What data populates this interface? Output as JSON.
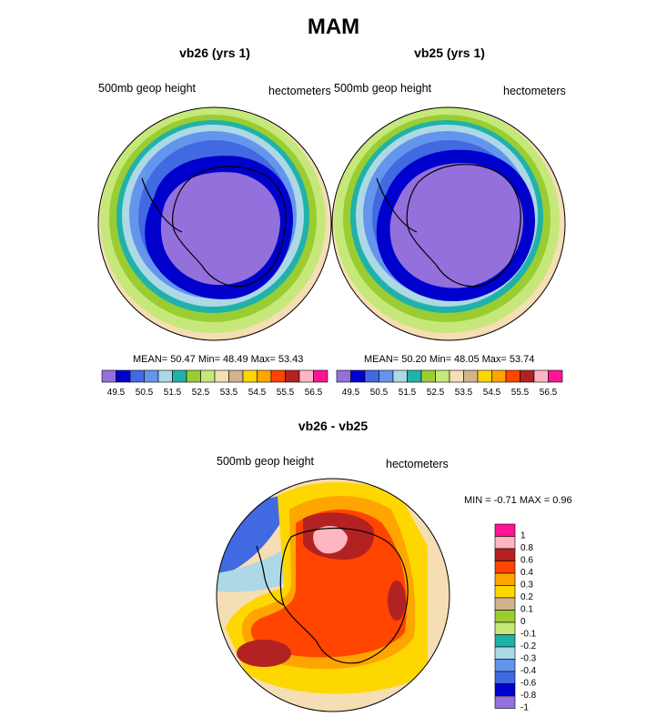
{
  "title": "MAM",
  "colors": {
    "levels": [
      "#9370db",
      "#0000cd",
      "#4169e1",
      "#6495ed",
      "#add8e6",
      "#20b2aa",
      "#9acd32",
      "#9acd32",
      "#f5deb3",
      "#d2b48c",
      "#ffd700",
      "#ffa500",
      "#ff4500",
      "#b22222",
      "#ffb6c1",
      "#ff1493"
    ],
    "ramp_abs": [
      "#9370db",
      "#0000cd",
      "#4169e1",
      "#6495ed",
      "#add8e6",
      "#20b2aa",
      "#9acd32",
      "#c6e87a",
      "#f5deb3",
      "#d2b48c",
      "#ffd700",
      "#ffa500",
      "#ff4500",
      "#b22222",
      "#ffb6c1",
      "#ff1493"
    ],
    "ramp_diff": [
      "#ff1493",
      "#ffb6c1",
      "#b22222",
      "#ff4500",
      "#ffa500",
      "#ffd700",
      "#d2b48c",
      "#9acd32",
      "#c6e87a",
      "#20b2aa",
      "#add8e6",
      "#6495ed",
      "#4169e1",
      "#0000cd",
      "#9370db"
    ]
  },
  "panels": [
    {
      "title": "vb26 (yrs 1)",
      "left_label": "500mb geop height",
      "right_label": "hectometers",
      "stats": "MEAN=  50.47  Min=  48.49  Max=  53.43"
    },
    {
      "title": "vb25 (yrs 1)",
      "left_label": "500mb geop height",
      "right_label": "hectometers",
      "stats": "MEAN=  50.20  Min=  48.05  Max=  53.74"
    },
    {
      "title": "vb26 - vb25",
      "left_label": "500mb geop height",
      "right_label": "hectometers",
      "stats": "MIN =  -0.71 MAX =   0.96"
    }
  ],
  "chart_data": [
    {
      "type": "heatmap",
      "title": "vb26 (yrs 1)",
      "projection": "south polar stereographic",
      "variable": "500mb geop height",
      "units": "hectometers",
      "mean": 50.47,
      "min": 48.49,
      "max": 53.43,
      "colorbar_ticks": [
        "49.5",
        "50.5",
        "51.5",
        "52.5",
        "53.5",
        "54.5",
        "55.5",
        "56.5"
      ],
      "levels": [
        49.5,
        49.75,
        50,
        50.25,
        50.5,
        50.75,
        51,
        51.25,
        51.5,
        51.75,
        52,
        52.25,
        52.5,
        52.75,
        53,
        53.25,
        53.5,
        53.75,
        54,
        54.25,
        54.5,
        54.75,
        55,
        55.25,
        55.5,
        55.75,
        56,
        56.25,
        56.5
      ],
      "legend_position": "bottom"
    },
    {
      "type": "heatmap",
      "title": "vb25 (yrs 1)",
      "projection": "south polar stereographic",
      "variable": "500mb geop height",
      "units": "hectometers",
      "mean": 50.2,
      "min": 48.05,
      "max": 53.74,
      "colorbar_ticks": [
        "49.5",
        "50.5",
        "51.5",
        "52.5",
        "53.5",
        "54.5",
        "55.5",
        "56.5"
      ],
      "legend_position": "bottom"
    },
    {
      "type": "heatmap",
      "title": "vb26 - vb25",
      "projection": "south polar stereographic",
      "variable": "500mb geop height",
      "units": "hectometers",
      "min": -0.71,
      "max": 0.96,
      "colorbar_ticks": [
        "1",
        "0.8",
        "0.6",
        "0.4",
        "0.3",
        "0.2",
        "0.1",
        "0",
        "-0.1",
        "-0.2",
        "-0.3",
        "-0.4",
        "-0.6",
        "-0.8",
        "-1"
      ],
      "legend_position": "right"
    }
  ]
}
